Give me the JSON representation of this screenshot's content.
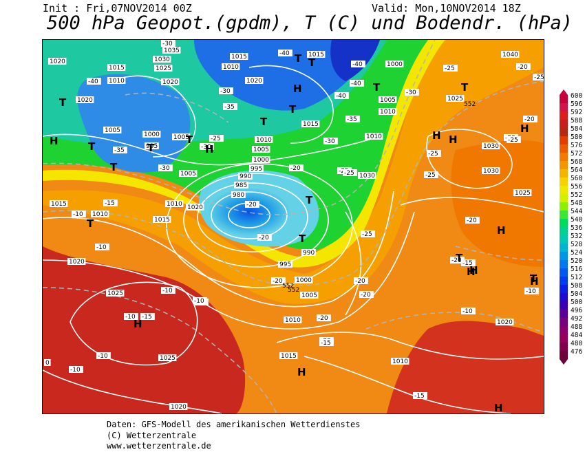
{
  "header": {
    "init": "Init : Fri,07NOV2014 00Z",
    "valid": "Valid: Mon,10NOV2014 18Z",
    "title": "500 hPa Geopot.(gpdm), T (C) und Bodendr. (hPa)"
  },
  "colorbar": {
    "labels": [
      "600",
      "596",
      "592",
      "588",
      "584",
      "580",
      "576",
      "572",
      "568",
      "564",
      "560",
      "556",
      "552",
      "548",
      "544",
      "540",
      "536",
      "532",
      "528",
      "524",
      "520",
      "516",
      "512",
      "508",
      "504",
      "500",
      "496",
      "492",
      "488",
      "484",
      "480",
      "476"
    ],
    "colors": [
      "#c8003c",
      "#d2144a",
      "#dc1e1e",
      "#c81e1e",
      "#b42814",
      "#e63c00",
      "#f05a00",
      "#f57800",
      "#f59600",
      "#f5b400",
      "#f5d200",
      "#f0e600",
      "#d2f000",
      "#8cf000",
      "#3ce632",
      "#00dc5a",
      "#00d28c",
      "#00c8b4",
      "#00b4d2",
      "#0096e6",
      "#0078f0",
      "#005af0",
      "#003cf0",
      "#0a1ee6",
      "#1e0ad2",
      "#3c00b4",
      "#5a0096",
      "#780082",
      "#8c006e",
      "#96005a",
      "#820050",
      "#6e003c"
    ]
  },
  "pressure_labels": [
    {
      "text": "1035"
    },
    {
      "text": "1030"
    },
    {
      "text": "1025"
    },
    {
      "text": "1020"
    },
    {
      "text": "1015"
    },
    {
      "text": "1010"
    },
    {
      "text": "1015"
    },
    {
      "text": "1010"
    },
    {
      "text": "1020"
    },
    {
      "text": "1020"
    },
    {
      "text": "1015"
    },
    {
      "text": "1000"
    },
    {
      "text": "1005"
    },
    {
      "text": "1010"
    },
    {
      "text": "1015"
    },
    {
      "text": "1025"
    },
    {
      "text": "1040"
    },
    {
      "text": "1005"
    },
    {
      "text": "1000"
    },
    {
      "text": "995"
    },
    {
      "text": "1005"
    },
    {
      "text": "1005"
    },
    {
      "text": "1010"
    },
    {
      "text": "1005"
    },
    {
      "text": "1000"
    },
    {
      "text": "995"
    },
    {
      "text": "990"
    },
    {
      "text": "985"
    },
    {
      "text": "980"
    },
    {
      "text": "1010"
    },
    {
      "text": "1015"
    },
    {
      "text": "1010"
    },
    {
      "text": "1015"
    },
    {
      "text": "1010"
    },
    {
      "text": "1030"
    },
    {
      "text": "1030"
    },
    {
      "text": "1025"
    },
    {
      "text": "990"
    },
    {
      "text": "995"
    },
    {
      "text": "1000"
    },
    {
      "text": "1005"
    },
    {
      "text": "1020"
    },
    {
      "text": "1025"
    },
    {
      "text": "1025"
    },
    {
      "text": "1010"
    },
    {
      "text": "1015"
    },
    {
      "text": "1010"
    },
    {
      "text": "1020"
    },
    {
      "text": "1020"
    },
    {
      "text": "1020"
    },
    {
      "text": "1020"
    },
    {
      "text": "1030"
    }
  ],
  "temp_labels": [
    {
      "text": "-30"
    },
    {
      "text": "-40"
    },
    {
      "text": "-40"
    },
    {
      "text": "-40"
    },
    {
      "text": "-25"
    },
    {
      "text": "-25"
    },
    {
      "text": "-40"
    },
    {
      "text": "-30"
    },
    {
      "text": "-35"
    },
    {
      "text": "-40"
    },
    {
      "text": "-35"
    },
    {
      "text": "-30"
    },
    {
      "text": "-30"
    },
    {
      "text": "-35"
    },
    {
      "text": "-30"
    },
    {
      "text": "-25"
    },
    {
      "text": "-25"
    },
    {
      "text": "-30"
    },
    {
      "text": "-20"
    },
    {
      "text": "-25"
    },
    {
      "text": "-20"
    },
    {
      "text": "-20"
    },
    {
      "text": "-25"
    },
    {
      "text": "-20"
    },
    {
      "text": "-15"
    },
    {
      "text": "-10"
    },
    {
      "text": "-10"
    },
    {
      "text": "-15"
    },
    {
      "text": "-10"
    },
    {
      "text": "-10"
    },
    {
      "text": "-10"
    },
    {
      "text": "-10"
    },
    {
      "text": "-20"
    },
    {
      "text": "-20"
    },
    {
      "text": "-25"
    },
    {
      "text": "-20"
    },
    {
      "text": "-25"
    },
    {
      "text": "-20"
    },
    {
      "text": "-20"
    },
    {
      "text": "-20"
    },
    {
      "text": "-20"
    },
    {
      "text": "-15"
    },
    {
      "text": "-15"
    },
    {
      "text": "-15"
    },
    {
      "text": "-20"
    },
    {
      "text": "-10"
    },
    {
      "text": "-10"
    },
    {
      "text": "-10"
    },
    {
      "text": "-25"
    },
    {
      "text": "-20"
    },
    {
      "text": "-10"
    },
    {
      "text": "0"
    }
  ],
  "geopot_labels": [
    {
      "text": "552"
    },
    {
      "text": "552"
    },
    {
      "text": "552"
    }
  ],
  "hl_labels": [
    {
      "text": "T"
    },
    {
      "text": "T"
    },
    {
      "text": "T"
    },
    {
      "text": "T"
    },
    {
      "text": "T"
    },
    {
      "text": "T"
    },
    {
      "text": "T"
    },
    {
      "text": "T"
    },
    {
      "text": "T"
    },
    {
      "text": "T"
    },
    {
      "text": "T"
    },
    {
      "text": "T"
    },
    {
      "text": "T"
    },
    {
      "text": "T"
    },
    {
      "text": "T"
    },
    {
      "text": "T"
    },
    {
      "text": "H"
    },
    {
      "text": "H"
    },
    {
      "text": "H"
    },
    {
      "text": "H"
    },
    {
      "text": "H"
    },
    {
      "text": "H"
    },
    {
      "text": "H"
    },
    {
      "text": "H"
    },
    {
      "text": "H"
    },
    {
      "text": "H"
    },
    {
      "text": "H"
    },
    {
      "text": "H"
    },
    {
      "text": "H"
    }
  ],
  "footer": {
    "line1": "Daten: GFS-Modell des amerikanischen Wetterdienstes",
    "line2": "(C) Wetterzentrale",
    "line3": "www.wetterzentrale.de"
  }
}
